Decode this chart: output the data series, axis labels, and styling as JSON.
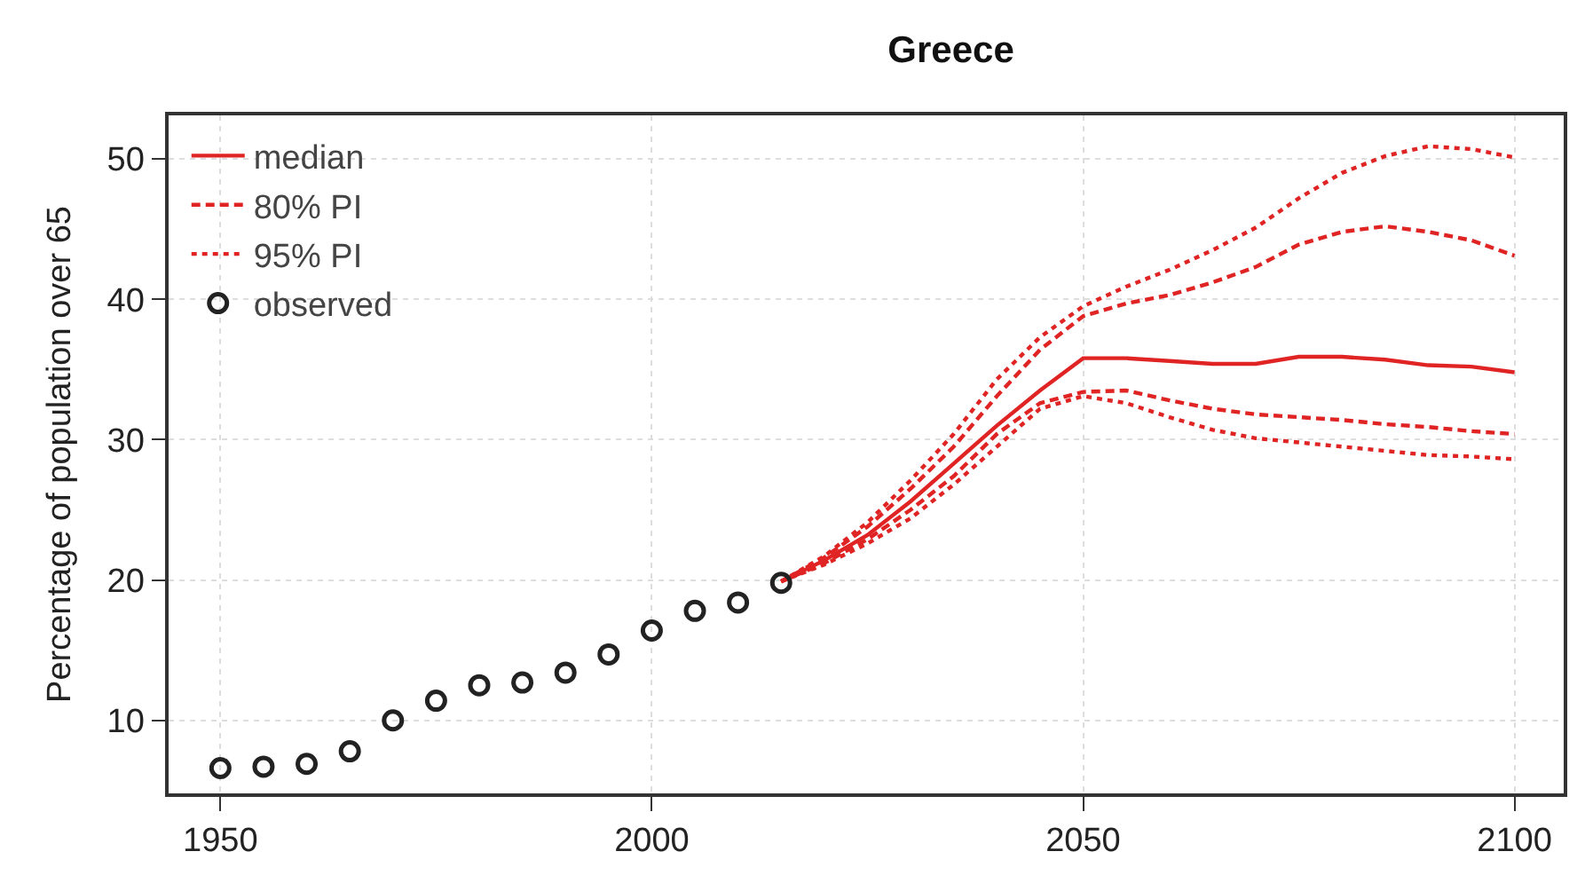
{
  "chart_data": {
    "type": "line",
    "title": "Greece",
    "ylabel": "Percentage of population over 65",
    "xlim": [
      1944,
      2105.7
    ],
    "ylim": [
      4.8,
      53.1
    ],
    "xticks": [
      1950,
      2000,
      2050,
      2100
    ],
    "yticks": [
      10,
      20,
      30,
      40,
      50
    ],
    "grid": true,
    "legend": "top left",
    "series": [
      {
        "name": "median",
        "line_style": "solid",
        "color": "#e02424",
        "x": [
          2015,
          2020,
          2025,
          2030,
          2035,
          2040,
          2045,
          2050,
          2055,
          2060,
          2065,
          2070,
          2075,
          2080,
          2085,
          2090,
          2095,
          2100
        ],
        "values": [
          19.9,
          21.4,
          23.2,
          25.6,
          28.3,
          31.0,
          33.5,
          35.8,
          35.8,
          35.6,
          35.4,
          35.4,
          35.9,
          35.9,
          35.7,
          35.3,
          35.2,
          34.8
        ]
      },
      {
        "name": "80% PI",
        "line_style": "dashed",
        "color": "#e02424",
        "x": [
          2015,
          2020,
          2025,
          2030,
          2035,
          2040,
          2045,
          2050,
          2055,
          2060,
          2065,
          2070,
          2075,
          2080,
          2085,
          2090,
          2095,
          2100
        ],
        "values": [
          19.9,
          21.6,
          23.8,
          26.5,
          29.5,
          33.1,
          36.4,
          38.8,
          39.7,
          40.3,
          41.2,
          42.3,
          43.9,
          44.8,
          45.2,
          44.8,
          44.2,
          43.1
        ]
      },
      {
        "line_style": "dashed",
        "color": "#e02424",
        "x": [
          2015,
          2020,
          2025,
          2030,
          2035,
          2040,
          2045,
          2050,
          2055,
          2060,
          2065,
          2070,
          2075,
          2080,
          2085,
          2090,
          2095,
          2100
        ],
        "values": [
          19.9,
          21.2,
          22.9,
          25.0,
          27.4,
          30.4,
          32.6,
          33.4,
          33.5,
          32.8,
          32.2,
          31.8,
          31.6,
          31.4,
          31.1,
          30.9,
          30.6,
          30.4
        ]
      },
      {
        "name": "95% PI",
        "line_style": "dotted",
        "color": "#e02424",
        "x": [
          2015,
          2020,
          2025,
          2030,
          2035,
          2040,
          2045,
          2050,
          2055,
          2060,
          2065,
          2070,
          2075,
          2080,
          2085,
          2090,
          2095,
          2100
        ],
        "values": [
          19.9,
          21.7,
          24.1,
          27.1,
          30.4,
          34.3,
          37.3,
          39.5,
          40.9,
          42.1,
          43.5,
          45.1,
          47.2,
          49.0,
          50.2,
          50.9,
          50.7,
          50.1
        ]
      },
      {
        "line_style": "dotted",
        "color": "#e02424",
        "x": [
          2015,
          2020,
          2025,
          2030,
          2035,
          2040,
          2045,
          2050,
          2055,
          2060,
          2065,
          2070,
          2075,
          2080,
          2085,
          2090,
          2095,
          2100
        ],
        "values": [
          19.9,
          21.1,
          22.6,
          24.4,
          26.8,
          29.5,
          32.2,
          33.1,
          32.6,
          31.6,
          30.7,
          30.1,
          29.8,
          29.5,
          29.2,
          28.9,
          28.8,
          28.6
        ]
      },
      {
        "name": "observed",
        "type": "scatter",
        "marker": "circle",
        "color": "#222222",
        "x": [
          1950,
          1955,
          1960,
          1965,
          1970,
          1975,
          1980,
          1985,
          1990,
          1995,
          2000,
          2005,
          2010,
          2015
        ],
        "values": [
          6.6,
          6.7,
          6.9,
          7.8,
          10.0,
          11.4,
          12.5,
          12.7,
          13.4,
          14.7,
          16.4,
          17.8,
          18.4,
          19.8
        ]
      }
    ]
  }
}
